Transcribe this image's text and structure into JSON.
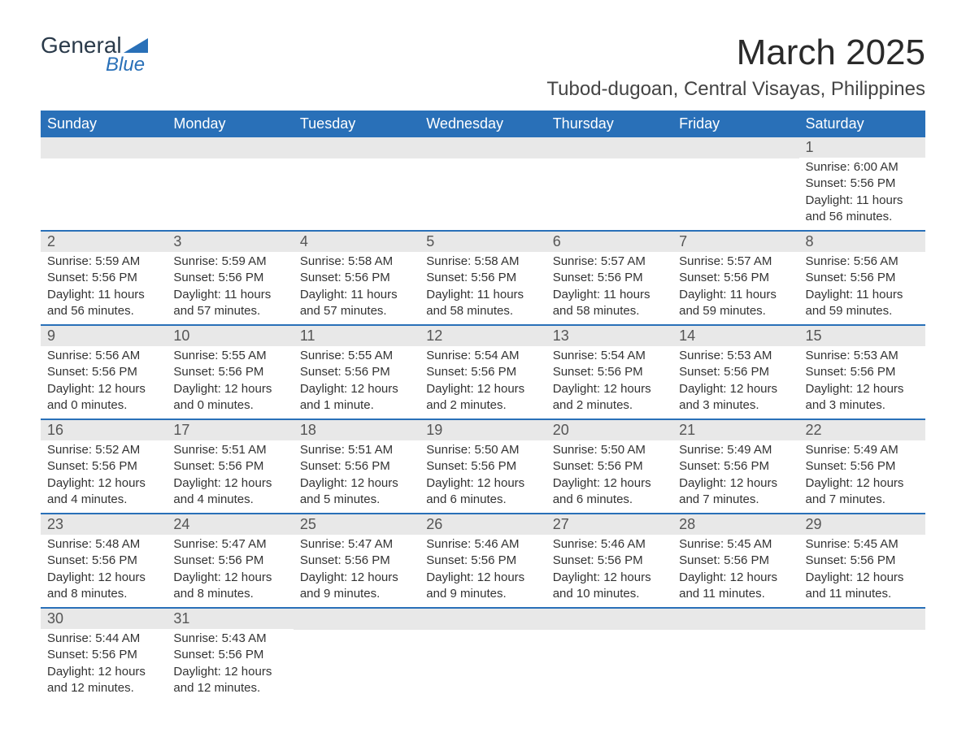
{
  "logo": {
    "brand_general": "General",
    "brand_blue": "Blue"
  },
  "header": {
    "month_title": "March 2025",
    "location": "Tubod-dugoan, Central Visayas, Philippines"
  },
  "style": {
    "header_bg": "#2970b8",
    "header_text": "#ffffff",
    "daynum_bg": "#e8e8e8",
    "row_border": "#2970b8",
    "text_color": "#333333",
    "title_fontsize": 44,
    "location_fontsize": 24,
    "weekday_fontsize": 18,
    "daynum_fontsize": 18,
    "body_fontsize": 15
  },
  "weekdays": [
    "Sunday",
    "Monday",
    "Tuesday",
    "Wednesday",
    "Thursday",
    "Friday",
    "Saturday"
  ],
  "weeks": [
    [
      {
        "empty": true
      },
      {
        "empty": true
      },
      {
        "empty": true
      },
      {
        "empty": true
      },
      {
        "empty": true
      },
      {
        "empty": true
      },
      {
        "day": "1",
        "sunrise": "Sunrise: 6:00 AM",
        "sunset": "Sunset: 5:56 PM",
        "day1": "Daylight: 11 hours",
        "day2": "and 56 minutes."
      }
    ],
    [
      {
        "day": "2",
        "sunrise": "Sunrise: 5:59 AM",
        "sunset": "Sunset: 5:56 PM",
        "day1": "Daylight: 11 hours",
        "day2": "and 56 minutes."
      },
      {
        "day": "3",
        "sunrise": "Sunrise: 5:59 AM",
        "sunset": "Sunset: 5:56 PM",
        "day1": "Daylight: 11 hours",
        "day2": "and 57 minutes."
      },
      {
        "day": "4",
        "sunrise": "Sunrise: 5:58 AM",
        "sunset": "Sunset: 5:56 PM",
        "day1": "Daylight: 11 hours",
        "day2": "and 57 minutes."
      },
      {
        "day": "5",
        "sunrise": "Sunrise: 5:58 AM",
        "sunset": "Sunset: 5:56 PM",
        "day1": "Daylight: 11 hours",
        "day2": "and 58 minutes."
      },
      {
        "day": "6",
        "sunrise": "Sunrise: 5:57 AM",
        "sunset": "Sunset: 5:56 PM",
        "day1": "Daylight: 11 hours",
        "day2": "and 58 minutes."
      },
      {
        "day": "7",
        "sunrise": "Sunrise: 5:57 AM",
        "sunset": "Sunset: 5:56 PM",
        "day1": "Daylight: 11 hours",
        "day2": "and 59 minutes."
      },
      {
        "day": "8",
        "sunrise": "Sunrise: 5:56 AM",
        "sunset": "Sunset: 5:56 PM",
        "day1": "Daylight: 11 hours",
        "day2": "and 59 minutes."
      }
    ],
    [
      {
        "day": "9",
        "sunrise": "Sunrise: 5:56 AM",
        "sunset": "Sunset: 5:56 PM",
        "day1": "Daylight: 12 hours",
        "day2": "and 0 minutes."
      },
      {
        "day": "10",
        "sunrise": "Sunrise: 5:55 AM",
        "sunset": "Sunset: 5:56 PM",
        "day1": "Daylight: 12 hours",
        "day2": "and 0 minutes."
      },
      {
        "day": "11",
        "sunrise": "Sunrise: 5:55 AM",
        "sunset": "Sunset: 5:56 PM",
        "day1": "Daylight: 12 hours",
        "day2": "and 1 minute."
      },
      {
        "day": "12",
        "sunrise": "Sunrise: 5:54 AM",
        "sunset": "Sunset: 5:56 PM",
        "day1": "Daylight: 12 hours",
        "day2": "and 2 minutes."
      },
      {
        "day": "13",
        "sunrise": "Sunrise: 5:54 AM",
        "sunset": "Sunset: 5:56 PM",
        "day1": "Daylight: 12 hours",
        "day2": "and 2 minutes."
      },
      {
        "day": "14",
        "sunrise": "Sunrise: 5:53 AM",
        "sunset": "Sunset: 5:56 PM",
        "day1": "Daylight: 12 hours",
        "day2": "and 3 minutes."
      },
      {
        "day": "15",
        "sunrise": "Sunrise: 5:53 AM",
        "sunset": "Sunset: 5:56 PM",
        "day1": "Daylight: 12 hours",
        "day2": "and 3 minutes."
      }
    ],
    [
      {
        "day": "16",
        "sunrise": "Sunrise: 5:52 AM",
        "sunset": "Sunset: 5:56 PM",
        "day1": "Daylight: 12 hours",
        "day2": "and 4 minutes."
      },
      {
        "day": "17",
        "sunrise": "Sunrise: 5:51 AM",
        "sunset": "Sunset: 5:56 PM",
        "day1": "Daylight: 12 hours",
        "day2": "and 4 minutes."
      },
      {
        "day": "18",
        "sunrise": "Sunrise: 5:51 AM",
        "sunset": "Sunset: 5:56 PM",
        "day1": "Daylight: 12 hours",
        "day2": "and 5 minutes."
      },
      {
        "day": "19",
        "sunrise": "Sunrise: 5:50 AM",
        "sunset": "Sunset: 5:56 PM",
        "day1": "Daylight: 12 hours",
        "day2": "and 6 minutes."
      },
      {
        "day": "20",
        "sunrise": "Sunrise: 5:50 AM",
        "sunset": "Sunset: 5:56 PM",
        "day1": "Daylight: 12 hours",
        "day2": "and 6 minutes."
      },
      {
        "day": "21",
        "sunrise": "Sunrise: 5:49 AM",
        "sunset": "Sunset: 5:56 PM",
        "day1": "Daylight: 12 hours",
        "day2": "and 7 minutes."
      },
      {
        "day": "22",
        "sunrise": "Sunrise: 5:49 AM",
        "sunset": "Sunset: 5:56 PM",
        "day1": "Daylight: 12 hours",
        "day2": "and 7 minutes."
      }
    ],
    [
      {
        "day": "23",
        "sunrise": "Sunrise: 5:48 AM",
        "sunset": "Sunset: 5:56 PM",
        "day1": "Daylight: 12 hours",
        "day2": "and 8 minutes."
      },
      {
        "day": "24",
        "sunrise": "Sunrise: 5:47 AM",
        "sunset": "Sunset: 5:56 PM",
        "day1": "Daylight: 12 hours",
        "day2": "and 8 minutes."
      },
      {
        "day": "25",
        "sunrise": "Sunrise: 5:47 AM",
        "sunset": "Sunset: 5:56 PM",
        "day1": "Daylight: 12 hours",
        "day2": "and 9 minutes."
      },
      {
        "day": "26",
        "sunrise": "Sunrise: 5:46 AM",
        "sunset": "Sunset: 5:56 PM",
        "day1": "Daylight: 12 hours",
        "day2": "and 9 minutes."
      },
      {
        "day": "27",
        "sunrise": "Sunrise: 5:46 AM",
        "sunset": "Sunset: 5:56 PM",
        "day1": "Daylight: 12 hours",
        "day2": "and 10 minutes."
      },
      {
        "day": "28",
        "sunrise": "Sunrise: 5:45 AM",
        "sunset": "Sunset: 5:56 PM",
        "day1": "Daylight: 12 hours",
        "day2": "and 11 minutes."
      },
      {
        "day": "29",
        "sunrise": "Sunrise: 5:45 AM",
        "sunset": "Sunset: 5:56 PM",
        "day1": "Daylight: 12 hours",
        "day2": "and 11 minutes."
      }
    ],
    [
      {
        "day": "30",
        "sunrise": "Sunrise: 5:44 AM",
        "sunset": "Sunset: 5:56 PM",
        "day1": "Daylight: 12 hours",
        "day2": "and 12 minutes."
      },
      {
        "day": "31",
        "sunrise": "Sunrise: 5:43 AM",
        "sunset": "Sunset: 5:56 PM",
        "day1": "Daylight: 12 hours",
        "day2": "and 12 minutes."
      },
      {
        "empty": true
      },
      {
        "empty": true
      },
      {
        "empty": true
      },
      {
        "empty": true
      },
      {
        "empty": true
      }
    ]
  ]
}
